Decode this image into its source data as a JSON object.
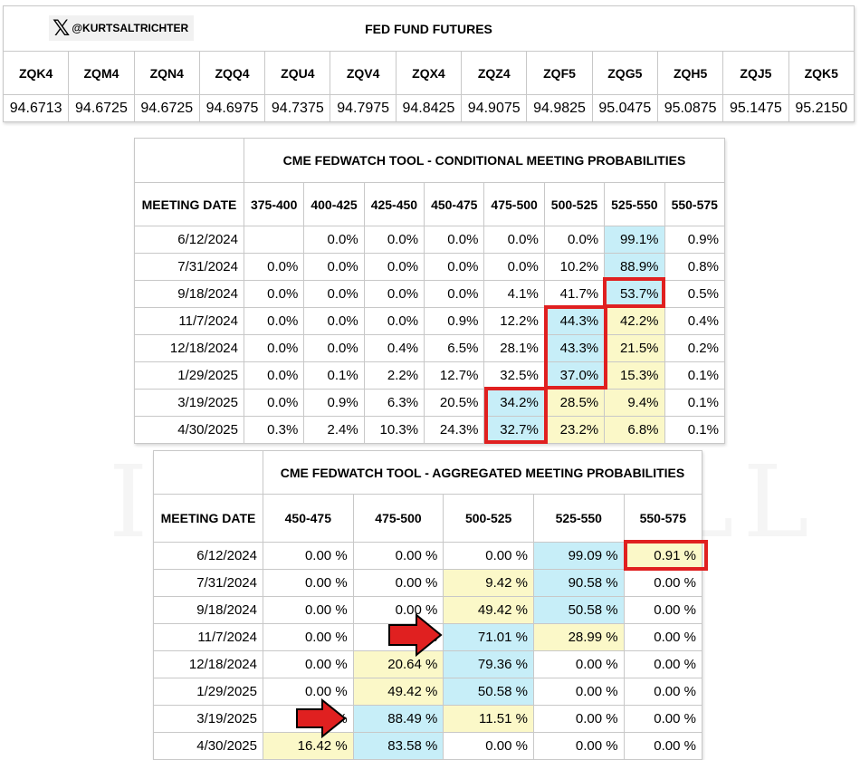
{
  "futures": {
    "handle": "@KURTSALTRICHTER",
    "title": "FED FUND FUTURES",
    "contracts": [
      "ZQK4",
      "ZQM4",
      "ZQN4",
      "ZQQ4",
      "ZQU4",
      "ZQV4",
      "ZQX4",
      "ZQZ4",
      "ZQF5",
      "ZQG5",
      "ZQH5",
      "ZQJ5",
      "ZQK5"
    ],
    "prices": [
      "94.6713",
      "94.6725",
      "94.6725",
      "94.6975",
      "94.7375",
      "94.7975",
      "94.8425",
      "94.9075",
      "94.9825",
      "95.0475",
      "95.0875",
      "95.1475",
      "95.2150"
    ]
  },
  "conditional": {
    "title": "CME FEDWATCH TOOL - CONDITIONAL MEETING PROBABILITIES",
    "header": "MEETING DATE",
    "columns": [
      "375-400",
      "400-425",
      "425-450",
      "450-475",
      "475-500",
      "500-525",
      "525-550",
      "550-575"
    ],
    "rows": [
      {
        "date": "6/12/2024",
        "values": [
          "",
          "0.0%",
          "0.0%",
          "0.0%",
          "0.0%",
          "0.0%",
          "99.1%",
          "0.9%"
        ],
        "shade": [
          "",
          "",
          "",
          "",
          "",
          "",
          "cyan",
          ""
        ]
      },
      {
        "date": "7/31/2024",
        "values": [
          "0.0%",
          "0.0%",
          "0.0%",
          "0.0%",
          "0.0%",
          "10.2%",
          "88.9%",
          "0.8%"
        ],
        "shade": [
          "",
          "",
          "",
          "",
          "",
          "",
          "cyan",
          ""
        ]
      },
      {
        "date": "9/18/2024",
        "values": [
          "0.0%",
          "0.0%",
          "0.0%",
          "0.0%",
          "4.1%",
          "41.7%",
          "53.7%",
          "0.5%"
        ],
        "shade": [
          "",
          "",
          "",
          "",
          "",
          "",
          "cyan",
          ""
        ]
      },
      {
        "date": "11/7/2024",
        "values": [
          "0.0%",
          "0.0%",
          "0.0%",
          "0.9%",
          "12.2%",
          "44.3%",
          "42.2%",
          "0.4%"
        ],
        "shade": [
          "",
          "",
          "",
          "",
          "",
          "cyan",
          "yellow",
          ""
        ]
      },
      {
        "date": "12/18/2024",
        "values": [
          "0.0%",
          "0.0%",
          "0.4%",
          "6.5%",
          "28.1%",
          "43.3%",
          "21.5%",
          "0.2%"
        ],
        "shade": [
          "",
          "",
          "",
          "",
          "",
          "cyan",
          "yellow",
          ""
        ]
      },
      {
        "date": "1/29/2025",
        "values": [
          "0.0%",
          "0.1%",
          "2.2%",
          "12.7%",
          "32.5%",
          "37.0%",
          "15.3%",
          "0.1%"
        ],
        "shade": [
          "",
          "",
          "",
          "",
          "",
          "cyan",
          "yellow",
          ""
        ]
      },
      {
        "date": "3/19/2025",
        "values": [
          "0.0%",
          "0.9%",
          "6.3%",
          "20.5%",
          "34.2%",
          "28.5%",
          "9.4%",
          "0.1%"
        ],
        "shade": [
          "",
          "",
          "",
          "",
          "cyan",
          "yellow",
          "yellow",
          ""
        ]
      },
      {
        "date": "4/30/2025",
        "values": [
          "0.3%",
          "2.4%",
          "10.3%",
          "24.3%",
          "32.7%",
          "23.2%",
          "6.8%",
          "0.1%"
        ],
        "shade": [
          "",
          "",
          "",
          "",
          "cyan",
          "yellow",
          "yellow",
          ""
        ]
      }
    ]
  },
  "aggregated": {
    "title": "CME FEDWATCH TOOL - AGGREGATED MEETING PROBABILITIES",
    "header": "MEETING DATE",
    "columns": [
      "450-475",
      "475-500",
      "500-525",
      "525-550",
      "550-575"
    ],
    "rows": [
      {
        "date": "6/12/2024",
        "values": [
          "0.00 %",
          "0.00 %",
          "0.00 %",
          "99.09 %",
          "0.91 %"
        ],
        "shade": [
          "",
          "",
          "",
          "cyan",
          "yellow"
        ]
      },
      {
        "date": "7/31/2024",
        "values": [
          "0.00 %",
          "0.00 %",
          "9.42 %",
          "90.58 %",
          "0.00 %"
        ],
        "shade": [
          "",
          "",
          "yellow",
          "cyan",
          ""
        ]
      },
      {
        "date": "9/18/2024",
        "values": [
          "0.00 %",
          "0.00 %",
          "49.42 %",
          "50.58 %",
          "0.00 %"
        ],
        "shade": [
          "",
          "",
          "yellow",
          "cyan",
          ""
        ]
      },
      {
        "date": "11/7/2024",
        "values": [
          "0.00 %",
          "0.00 %",
          "71.01 %",
          "28.99 %",
          "0.00 %"
        ],
        "shade": [
          "",
          "",
          "cyan",
          "yellow",
          ""
        ]
      },
      {
        "date": "12/18/2024",
        "values": [
          "0.00 %",
          "20.64 %",
          "79.36 %",
          "0.00 %",
          "0.00 %"
        ],
        "shade": [
          "",
          "yellow",
          "cyan",
          "",
          ""
        ]
      },
      {
        "date": "1/29/2025",
        "values": [
          "0.00 %",
          "49.42 %",
          "50.58 %",
          "0.00 %",
          "0.00 %"
        ],
        "shade": [
          "",
          "yellow",
          "cyan",
          "",
          ""
        ]
      },
      {
        "date": "3/19/2025",
        "values": [
          "0.00 %",
          "88.49 %",
          "11.51 %",
          "0.00 %",
          "0.00 %"
        ],
        "shade": [
          "",
          "cyan",
          "yellow",
          "",
          ""
        ]
      },
      {
        "date": "4/30/2025",
        "values": [
          "16.42 %",
          "83.58 %",
          "0.00 %",
          "0.00 %",
          "0.00 %"
        ],
        "shade": [
          "yellow",
          "cyan",
          "",
          "",
          ""
        ]
      }
    ]
  },
  "watermark": "IVORY HILL",
  "colors": {
    "highlight_cyan": "#c7eef8",
    "highlight_yellow": "#fbf8c8",
    "callout_red": "#e02020"
  }
}
